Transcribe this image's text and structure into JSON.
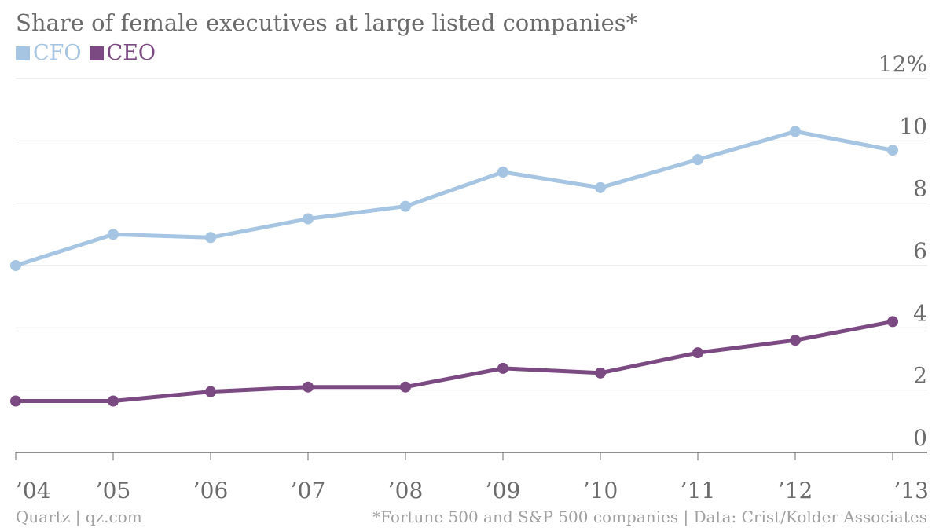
{
  "chart_data": {
    "type": "line",
    "title": "Share of female executives at large listed companies*",
    "categories": [
      "’04",
      "’05",
      "’06",
      "’07",
      "’08",
      "’09",
      "’10",
      "’11",
      "’12",
      "’13"
    ],
    "series": [
      {
        "name": "CFO",
        "color": "#a5c5e3",
        "values": [
          6.0,
          7.0,
          6.9,
          7.5,
          7.9,
          9.0,
          8.5,
          9.4,
          10.3,
          9.7
        ]
      },
      {
        "name": "CEO",
        "color": "#7c4a82",
        "values": [
          1.65,
          1.65,
          1.95,
          2.1,
          2.1,
          2.7,
          2.55,
          3.2,
          3.6,
          4.2
        ]
      }
    ],
    "y_ticks": [
      {
        "value": 0,
        "label": "0"
      },
      {
        "value": 2,
        "label": "2"
      },
      {
        "value": 4,
        "label": "4"
      },
      {
        "value": 6,
        "label": "6"
      },
      {
        "value": 8,
        "label": "8"
      },
      {
        "value": 10,
        "label": "10"
      },
      {
        "value": 12,
        "label": "12%"
      }
    ],
    "ylim": [
      0,
      12
    ],
    "grid": true,
    "legend_position": "top-left"
  },
  "footer": {
    "source_left": "Quartz | qz.com",
    "source_right": "*Fortune 500 and S&P 500 companies | Data: Crist/Kolder Associates"
  }
}
